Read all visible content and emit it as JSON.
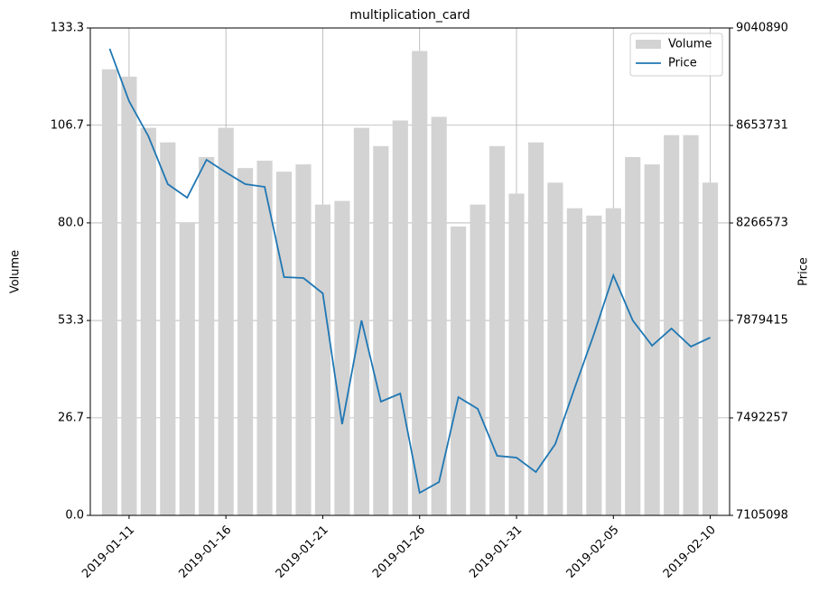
{
  "chart_data": {
    "type": "bar",
    "title": "multiplication_card",
    "y_label": "Volume",
    "y2_label": "Price",
    "x": [
      "2019-01-10",
      "2019-01-11",
      "2019-01-12",
      "2019-01-13",
      "2019-01-14",
      "2019-01-15",
      "2019-01-16",
      "2019-01-17",
      "2019-01-18",
      "2019-01-19",
      "2019-01-20",
      "2019-01-21",
      "2019-01-22",
      "2019-01-23",
      "2019-01-24",
      "2019-01-25",
      "2019-01-26",
      "2019-01-27",
      "2019-01-28",
      "2019-01-29",
      "2019-01-30",
      "2019-01-31",
      "2019-02-01",
      "2019-02-02",
      "2019-02-03",
      "2019-02-04",
      "2019-02-05",
      "2019-02-06",
      "2019-02-07",
      "2019-02-08",
      "2019-02-09",
      "2019-02-10"
    ],
    "series": [
      {
        "name": "Volume",
        "type": "bar",
        "color": "#d3d3d3",
        "axis": "y",
        "values": [
          122,
          120,
          106,
          102,
          80,
          98,
          106,
          95,
          97,
          94,
          96,
          85,
          86,
          106,
          101,
          108,
          127,
          109,
          79,
          85,
          101,
          88,
          102,
          91,
          84,
          82,
          84,
          98,
          96,
          104,
          104,
          91
        ]
      },
      {
        "name": "Price",
        "type": "line",
        "color": "#1f77b4",
        "axis": "y2",
        "values": [
          8958440,
          8750521,
          8610714,
          8420720,
          8366948,
          8517509,
          8467322,
          8420720,
          8409965,
          8051485,
          8047900,
          7986959,
          7467163,
          7879415,
          7556783,
          7589046,
          7194718,
          7237736,
          7574707,
          7528104,
          7341695,
          7334525,
          7277168,
          7388297,
          7610555,
          7825643,
          8058655,
          7879415,
          7779040,
          7847152,
          7775456,
          7811304
        ]
      }
    ],
    "xlim": [
      "2019-01-09",
      "2019-02-11"
    ],
    "xticks": [
      "2019-01-11",
      "2019-01-16",
      "2019-01-21",
      "2019-01-26",
      "2019-01-31",
      "2019-02-05",
      "2019-02-10"
    ],
    "ylim": [
      0,
      133.3
    ],
    "yticks": [
      {
        "value": 0,
        "label": "0.0"
      },
      26.7,
      53.3,
      {
        "value": 80,
        "label": "80.0"
      },
      106.7,
      133.3
    ],
    "y2lim": [
      7105098,
      9040890
    ],
    "y2ticks": [
      7105098,
      7492257,
      7879415,
      8266573,
      8653731,
      9040890
    ],
    "grid": true,
    "legend": "upper right"
  }
}
